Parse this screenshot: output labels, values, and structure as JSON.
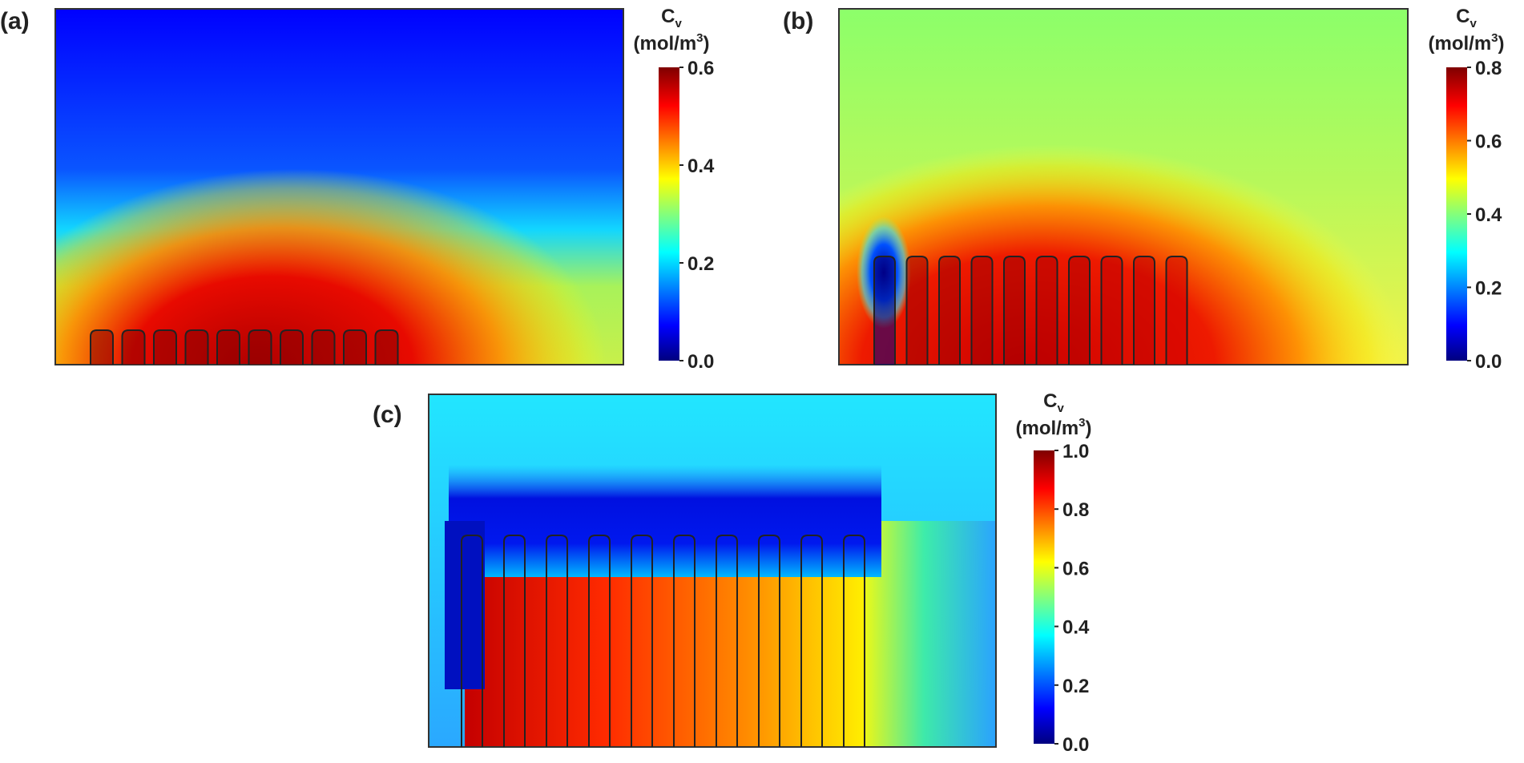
{
  "figure": {
    "description_type": "multi-panel heatmap figure",
    "colormap_stops": [
      "#00007f",
      "#0000ff",
      "#00ffff",
      "#ffff00",
      "#ff0000",
      "#7f0000"
    ]
  },
  "chart_data": [
    {
      "type": "heatmap",
      "panel_label": "(a)",
      "colorbar": {
        "title_main": "C",
        "title_sub": "v",
        "unit_main": "(mol/m",
        "unit_sup": "3",
        "unit_close": ")",
        "ticks": [
          "0.0",
          "0.2",
          "0.4",
          "0.6"
        ],
        "range": [
          0.0,
          0.6
        ]
      },
      "features": {
        "count": 10,
        "outlined": true
      },
      "field": {
        "background": "#0000ff",
        "far_right": "#c9f04a",
        "near_bottom_peak": "#7f0000",
        "value_range": [
          0.0,
          0.6
        ]
      }
    },
    {
      "type": "heatmap",
      "panel_label": "(b)",
      "colorbar": {
        "title_main": "C",
        "title_sub": "v",
        "unit_main": "(mol/m",
        "unit_sup": "3",
        "unit_close": ")",
        "ticks": [
          "0.0",
          "0.2",
          "0.4",
          "0.6",
          "0.8"
        ],
        "range": [
          0.0,
          0.8
        ]
      },
      "features": {
        "count": 10,
        "outlined": true
      },
      "field": {
        "background": "#8aff6a",
        "far_right": "#f3f24a",
        "near_bottom_peak": "#d40000",
        "value_range": [
          0.0,
          0.8
        ]
      }
    },
    {
      "type": "heatmap",
      "panel_label": "(c)",
      "colorbar": {
        "title_main": "C",
        "title_sub": "v",
        "unit_main": "(mol/m",
        "unit_sup": "3",
        "unit_close": ")",
        "ticks": [
          "0.0",
          "0.2",
          "0.4",
          "0.6",
          "0.8",
          "1.0"
        ],
        "range": [
          0.0,
          1.0
        ]
      },
      "features": {
        "count": 10,
        "outlined": true
      },
      "field": {
        "background": "#27d9ff",
        "far_right": "#2a9cff",
        "near_bottom_peak": "#ff2a00",
        "value_range": [
          0.0,
          1.0
        ]
      }
    }
  ]
}
